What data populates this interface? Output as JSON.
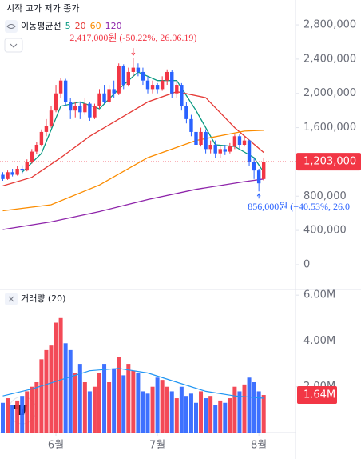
{
  "header": {
    "ohlc_label": "시작 고가 저가 종가",
    "ma_legend_title": "이동평균선"
  },
  "chart_data": [
    {
      "type": "candlestick",
      "categories": [
        null,
        null,
        null,
        null,
        null,
        null,
        null,
        null,
        null,
        null,
        null,
        "6월",
        null,
        null,
        null,
        null,
        null,
        null,
        null,
        null,
        null,
        null,
        null,
        null,
        null,
        null,
        null,
        null,
        null,
        null,
        null,
        null,
        "7월",
        null,
        null,
        null,
        null,
        null,
        null,
        null,
        null,
        null,
        null,
        null,
        null,
        null,
        null,
        null,
        null,
        null,
        null,
        null,
        null,
        "8월",
        null
      ],
      "open": [
        1050000,
        1000000,
        1080000,
        1050000,
        1120000,
        1100000,
        1200000,
        1320000,
        1400000,
        1550000,
        1620000,
        1800000,
        2000000,
        2150000,
        1900000,
        1800000,
        1850000,
        1780000,
        1880000,
        1720000,
        1850000,
        2000000,
        1900000,
        2050000,
        2000000,
        2320000,
        2100000,
        2250000,
        2300000,
        2250000,
        2150000,
        2050000,
        2100000,
        2050000,
        2150000,
        2250000,
        2000000,
        2100000,
        1850000,
        1700000,
        1550000,
        1400000,
        1550000,
        1350000,
        1400000,
        1300000,
        1350000,
        1320000,
        1380000,
        1500000,
        1400000,
        1450000,
        1200000,
        1100000,
        1000000
      ],
      "high": [
        1080000,
        1100000,
        1120000,
        1150000,
        1160000,
        1230000,
        1350000,
        1430000,
        1580000,
        1700000,
        1850000,
        2100000,
        2180000,
        2170000,
        1950000,
        1900000,
        1900000,
        1950000,
        1900000,
        1880000,
        2050000,
        2100000,
        2100000,
        2150000,
        2350000,
        2340000,
        2300000,
        2417000,
        2350000,
        2300000,
        2200000,
        2150000,
        2120000,
        2200000,
        2280000,
        2270000,
        2150000,
        2120000,
        1900000,
        1750000,
        1600000,
        1600000,
        1580000,
        1450000,
        1450000,
        1380000,
        1400000,
        1420000,
        1520000,
        1520000,
        1500000,
        1460000,
        1250000,
        1120000,
        1250000
      ],
      "low": [
        980000,
        990000,
        1030000,
        1040000,
        1060000,
        1090000,
        1180000,
        1290000,
        1380000,
        1500000,
        1600000,
        1780000,
        1950000,
        1850000,
        1700000,
        1720000,
        1700000,
        1750000,
        1680000,
        1700000,
        1820000,
        1880000,
        1880000,
        1950000,
        1980000,
        2050000,
        2080000,
        2200000,
        2200000,
        2100000,
        2000000,
        2000000,
        2000000,
        2030000,
        2100000,
        1950000,
        1950000,
        1800000,
        1650000,
        1500000,
        1350000,
        1380000,
        1300000,
        1300000,
        1250000,
        1250000,
        1280000,
        1300000,
        1350000,
        1360000,
        1380000,
        1150000,
        1000000,
        856000,
        980000
      ],
      "close": [
        1000000,
        1080000,
        1050000,
        1120000,
        1100000,
        1200000,
        1320000,
        1400000,
        1550000,
        1620000,
        1800000,
        2000000,
        2150000,
        1900000,
        1800000,
        1850000,
        1780000,
        1880000,
        1720000,
        1850000,
        2000000,
        1900000,
        2050000,
        2000000,
        2320000,
        2100000,
        2250000,
        2300000,
        2250000,
        2150000,
        2050000,
        2100000,
        2050000,
        2150000,
        2250000,
        2000000,
        2100000,
        1850000,
        1700000,
        1550000,
        1400000,
        1550000,
        1350000,
        1400000,
        1300000,
        1350000,
        1320000,
        1380000,
        1500000,
        1400000,
        1450000,
        1200000,
        1100000,
        950000,
        1203000
      ],
      "up_color": "#f23645",
      "down_color": "#2962ff",
      "ma": [
        {
          "name": "5",
          "color": "#089981",
          "x": [
            4,
            8,
            12,
            16,
            20,
            24,
            28,
            32,
            36,
            40,
            44,
            48,
            52,
            54
          ],
          "values": [
            1080000,
            1300000,
            1850000,
            1900000,
            1820000,
            2050000,
            2250000,
            2150000,
            2150000,
            1800000,
            1400000,
            1380000,
            1250000,
            1080000
          ]
        },
        {
          "name": "20",
          "color": "#e53935",
          "x": [
            0,
            6,
            12,
            18,
            24,
            30,
            36,
            42,
            48,
            54
          ],
          "values": [
            920000,
            1020000,
            1250000,
            1500000,
            1700000,
            1900000,
            2020000,
            1950000,
            1600000,
            1310000
          ]
        },
        {
          "name": "60",
          "color": "#fb8c00",
          "x": [
            0,
            10,
            20,
            30,
            40,
            50,
            54
          ],
          "values": [
            630000,
            700000,
            930000,
            1250000,
            1450000,
            1560000,
            1570000
          ]
        },
        {
          "name": "120",
          "color": "#8e24aa",
          "x": [
            0,
            10,
            20,
            30,
            40,
            50,
            54
          ],
          "values": [
            410000,
            500000,
            620000,
            760000,
            880000,
            970000,
            1000000
          ]
        }
      ],
      "ylim": [
        -290000,
        3090000
      ],
      "yticks": [
        {
          "value": 0,
          "label": "0"
        },
        {
          "value": 400000,
          "label": "400,000"
        },
        {
          "value": 800000,
          "label": "800,000"
        },
        {
          "value": 1600000,
          "label": "1,600,000"
        },
        {
          "value": 2000000,
          "label": "2,000,000"
        },
        {
          "value": 2400000,
          "label": "2,400,000"
        },
        {
          "value": 2800000,
          "label": "2,800,000"
        }
      ],
      "last_price": {
        "value": 1203000,
        "label": "1,203,000"
      },
      "annotations": [
        {
          "text": "2,417,000원 (-50.22%, 26.06.19)",
          "index": 27,
          "value": 2417000,
          "color": "#f23645"
        },
        {
          "text": "856,000원 (+40.53%, 26.0",
          "index": 53,
          "value": 856000,
          "color": "#2962ff"
        }
      ]
    },
    {
      "type": "volume",
      "title": "거래량 (20)",
      "values": [
        1300000,
        1500000,
        1200000,
        1400000,
        1600000,
        1800000,
        2000000,
        2200000,
        3200000,
        3600000,
        3800000,
        4800000,
        5000000,
        3900000,
        3600000,
        2600000,
        3000000,
        2200000,
        1800000,
        2000000,
        2600000,
        3000000,
        2200000,
        2800000,
        3300000,
        2500000,
        3000000,
        2700000,
        2600000,
        1800000,
        1700000,
        2000000,
        2400000,
        2300000,
        2000000,
        1800000,
        1500000,
        2000000,
        1600000,
        1700000,
        1300000,
        1800000,
        1500000,
        1600000,
        1200000,
        1400000,
        1300000,
        1500000,
        2000000,
        1800000,
        2100000,
        2400000,
        2200000,
        1800000,
        1640000
      ],
      "ma": {
        "color": "#2196f3",
        "x": [
          0,
          6,
          12,
          18,
          24,
          30,
          36,
          42,
          48,
          54
        ],
        "values": [
          1600000,
          1900000,
          2300000,
          2700000,
          2800000,
          2600000,
          2200000,
          1800000,
          1600000,
          1500000
        ]
      },
      "ylim": [
        0,
        6250000
      ],
      "yticks": [
        {
          "value": 2000000,
          "label": "2.00M"
        },
        {
          "value": 4000000,
          "label": "4.00M"
        },
        {
          "value": 6000000,
          "label": "6.00M"
        }
      ],
      "last_value": {
        "value": 1640000,
        "label": "1.64M"
      }
    }
  ]
}
